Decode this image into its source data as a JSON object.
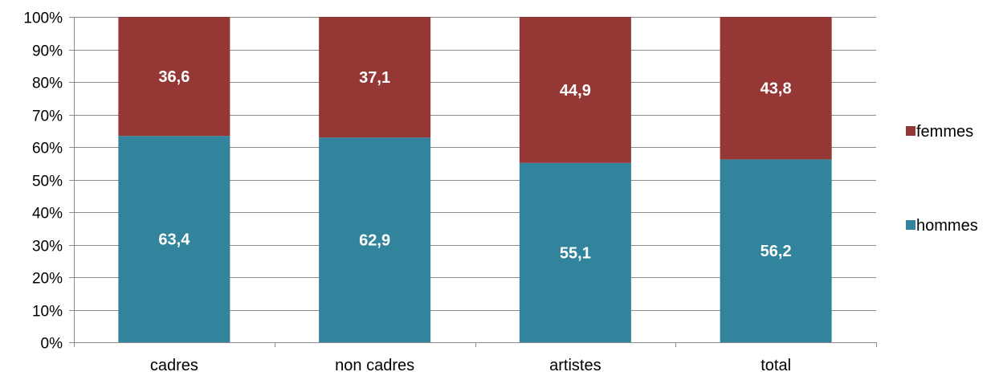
{
  "chart_data": {
    "type": "bar",
    "stacked": true,
    "percent_stacked": true,
    "title": "",
    "xlabel": "",
    "ylabel": "",
    "ylim": [
      0,
      100
    ],
    "y_ticks": [
      "0%",
      "10%",
      "20%",
      "30%",
      "40%",
      "50%",
      "60%",
      "70%",
      "80%",
      "90%",
      "100%"
    ],
    "grid": true,
    "legend_position": "right",
    "categories": [
      "cadres",
      "non cadres",
      "artistes",
      "total"
    ],
    "series": [
      {
        "name": "hommes",
        "color": "#31849b",
        "values": [
          63.4,
          62.9,
          55.1,
          56.2
        ],
        "labels": [
          "63,4",
          "62,9",
          "55,1",
          "56,2"
        ]
      },
      {
        "name": "femmes",
        "color": "#953735",
        "values": [
          36.6,
          37.1,
          44.9,
          43.8
        ],
        "labels": [
          "36,6",
          "37,1",
          "44,9",
          "43,8"
        ]
      }
    ],
    "legend_order": [
      "femmes",
      "hommes"
    ]
  }
}
